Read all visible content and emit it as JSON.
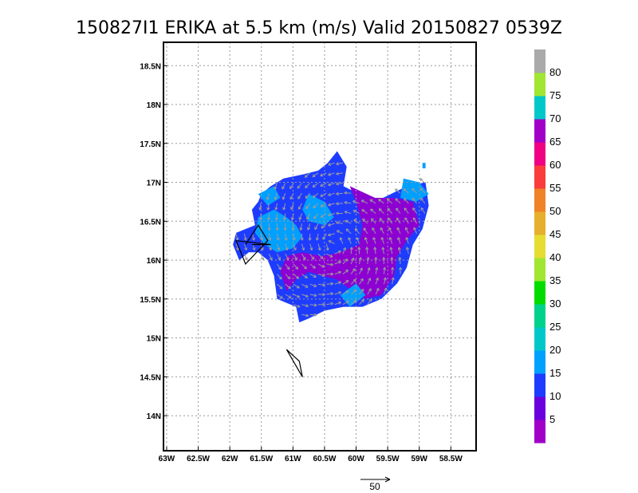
{
  "chart_data": {
    "type": "heatmap",
    "title": "150827I1 ERIKA at 5.5 km (m/s) Valid 20150827 0539Z",
    "x_ticks": [
      "63W",
      "62.5W",
      "62W",
      "61.5W",
      "61W",
      "60.5W",
      "60W",
      "59.5W",
      "59W",
      "58.5W"
    ],
    "y_ticks": [
      "18.5N",
      "18N",
      "17.5N",
      "17N",
      "16.5N",
      "16N",
      "15.5N",
      "15N",
      "14.5N",
      "14N"
    ],
    "xlim": [
      -63.05,
      -58.1
    ],
    "ylim": [
      13.55,
      18.8
    ],
    "grid": true,
    "colorbar": {
      "labels": [
        "5",
        "10",
        "15",
        "20",
        "25",
        "30",
        "35",
        "40",
        "45",
        "50",
        "55",
        "60",
        "65",
        "70",
        "75",
        "80"
      ],
      "colors": [
        "#a000c8",
        "#6a00dc",
        "#1e3cff",
        "#00a0ff",
        "#00c8c8",
        "#00d28c",
        "#00dc00",
        "#a0e632",
        "#e6dc32",
        "#e6af2d",
        "#f08228",
        "#fa3c3c",
        "#f00082",
        "#a000c8",
        "#00c8c8",
        "#a0e632",
        "#aaaaaa"
      ]
    },
    "reference_vector": {
      "label": "50"
    },
    "field_regions": [
      {
        "name": "10-15 m/s",
        "color": "#1e3cff",
        "polygon": [
          [
            -61.95,
            16.2
          ],
          [
            -61.9,
            16.35
          ],
          [
            -61.6,
            16.45
          ],
          [
            -61.65,
            16.65
          ],
          [
            -61.55,
            16.75
          ],
          [
            -61.5,
            16.85
          ],
          [
            -61.35,
            16.95
          ],
          [
            -61.15,
            17.05
          ],
          [
            -60.85,
            17.1
          ],
          [
            -60.6,
            17.15
          ],
          [
            -60.45,
            17.25
          ],
          [
            -60.3,
            17.4
          ],
          [
            -60.15,
            17.2
          ],
          [
            -60.2,
            16.95
          ],
          [
            -59.95,
            16.85
          ],
          [
            -59.7,
            16.75
          ],
          [
            -59.45,
            16.85
          ],
          [
            -59.2,
            16.95
          ],
          [
            -58.9,
            17.0
          ],
          [
            -58.85,
            16.7
          ],
          [
            -58.95,
            16.4
          ],
          [
            -59.1,
            16.2
          ],
          [
            -59.2,
            15.9
          ],
          [
            -59.35,
            15.7
          ],
          [
            -59.6,
            15.5
          ],
          [
            -59.9,
            15.4
          ],
          [
            -60.2,
            15.4
          ],
          [
            -60.5,
            15.35
          ],
          [
            -60.75,
            15.25
          ],
          [
            -60.9,
            15.2
          ],
          [
            -60.95,
            15.4
          ],
          [
            -61.1,
            15.45
          ],
          [
            -61.25,
            15.5
          ],
          [
            -61.3,
            15.8
          ],
          [
            -61.4,
            16.0
          ],
          [
            -61.55,
            16.1
          ],
          [
            -61.7,
            16.1
          ],
          [
            -61.85,
            16.0
          ],
          [
            -61.95,
            16.2
          ]
        ]
      },
      {
        "name": "0-10 m/s",
        "color": "#8c00d2",
        "polygon": [
          [
            -60.1,
            16.95
          ],
          [
            -59.7,
            16.8
          ],
          [
            -59.4,
            16.8
          ],
          [
            -59.1,
            16.75
          ],
          [
            -59.0,
            16.45
          ],
          [
            -59.2,
            16.25
          ],
          [
            -59.35,
            16.05
          ],
          [
            -59.4,
            15.8
          ],
          [
            -59.6,
            15.55
          ],
          [
            -59.85,
            15.5
          ],
          [
            -60.05,
            15.6
          ],
          [
            -60.3,
            15.75
          ],
          [
            -60.55,
            15.8
          ],
          [
            -60.75,
            15.85
          ],
          [
            -60.95,
            15.75
          ],
          [
            -61.1,
            15.6
          ],
          [
            -61.2,
            15.85
          ],
          [
            -61.1,
            16.05
          ],
          [
            -60.85,
            16.1
          ],
          [
            -60.55,
            16.05
          ],
          [
            -60.25,
            16.1
          ],
          [
            -59.95,
            16.2
          ],
          [
            -59.9,
            16.45
          ],
          [
            -60.0,
            16.75
          ],
          [
            -60.1,
            16.95
          ]
        ]
      },
      {
        "name": "15-20 m/s north",
        "color": "#00a0ff",
        "polygon": [
          [
            -61.55,
            16.55
          ],
          [
            -61.3,
            16.65
          ],
          [
            -61.1,
            16.55
          ],
          [
            -60.95,
            16.45
          ],
          [
            -60.85,
            16.3
          ],
          [
            -61.0,
            16.15
          ],
          [
            -61.25,
            16.1
          ],
          [
            -61.45,
            16.2
          ],
          [
            -61.6,
            16.35
          ],
          [
            -61.55,
            16.55
          ]
        ]
      },
      {
        "name": "15-20 m/s center",
        "color": "#00a0ff",
        "polygon": [
          [
            -60.75,
            16.85
          ],
          [
            -60.5,
            16.75
          ],
          [
            -60.35,
            16.55
          ],
          [
            -60.5,
            16.45
          ],
          [
            -60.75,
            16.5
          ],
          [
            -60.85,
            16.65
          ],
          [
            -60.75,
            16.85
          ]
        ]
      },
      {
        "name": "15-20 m/s east",
        "color": "#00a0ff",
        "polygon": [
          [
            -59.25,
            17.05
          ],
          [
            -59.0,
            17.0
          ],
          [
            -58.85,
            16.85
          ],
          [
            -59.05,
            16.75
          ],
          [
            -59.3,
            16.8
          ],
          [
            -59.25,
            17.05
          ]
        ]
      },
      {
        "name": "15-20 m/s south",
        "color": "#00a0ff",
        "polygon": [
          [
            -60.0,
            15.7
          ],
          [
            -59.85,
            15.55
          ],
          [
            -60.1,
            15.4
          ],
          [
            -60.25,
            15.55
          ],
          [
            -60.0,
            15.7
          ]
        ]
      },
      {
        "name": "15-20 m/s west",
        "color": "#00a0ff",
        "polygon": [
          [
            -61.55,
            16.85
          ],
          [
            -61.3,
            16.95
          ],
          [
            -61.2,
            16.8
          ],
          [
            -61.4,
            16.7
          ],
          [
            -61.55,
            16.85
          ]
        ]
      },
      {
        "name": "15-20 m/s northeast speck",
        "color": "#00a0ff",
        "polygon": [
          [
            -58.95,
            17.25
          ],
          [
            -58.9,
            17.25
          ],
          [
            -58.9,
            17.18
          ],
          [
            -58.95,
            17.18
          ],
          [
            -58.95,
            17.25
          ]
        ]
      }
    ],
    "flight_track": [
      [
        -61.75,
        16.2
      ],
      [
        -61.55,
        16.45
      ],
      [
        -61.4,
        16.25
      ],
      [
        -61.75,
        15.95
      ],
      [
        -61.9,
        16.25
      ],
      [
        -61.35,
        16.2
      ],
      [
        -61.65,
        16.2
      ]
    ],
    "flight_track_south": [
      [
        -61.1,
        14.85
      ],
      [
        -60.85,
        14.5
      ],
      [
        -60.9,
        14.7
      ],
      [
        -61.1,
        14.85
      ]
    ]
  }
}
